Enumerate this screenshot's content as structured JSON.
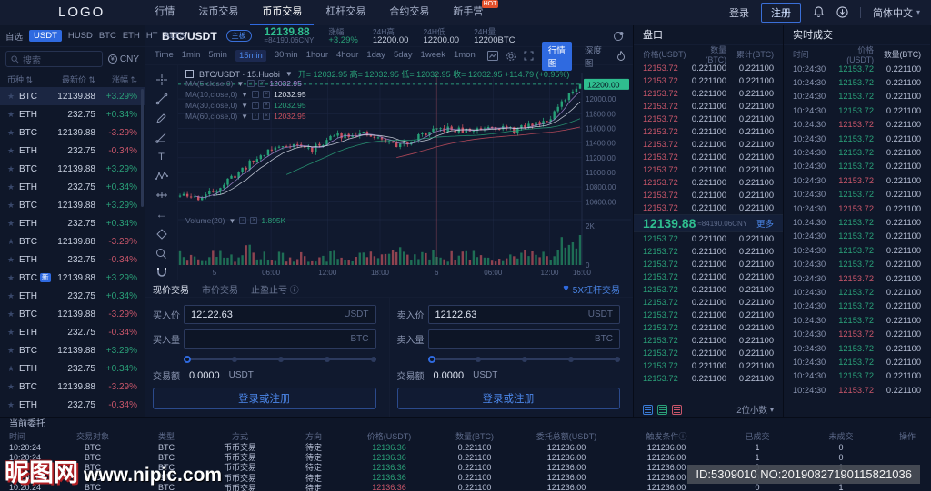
{
  "nav": {
    "logo": "LOGO",
    "items": [
      {
        "label": "行情"
      },
      {
        "label": "法币交易"
      },
      {
        "label": "币币交易",
        "active": true
      },
      {
        "label": "杠杆交易"
      },
      {
        "label": "合约交易"
      },
      {
        "label": "新手营",
        "hot": "HOT"
      }
    ],
    "login": "登录",
    "register": "注册",
    "lang": "简体中文"
  },
  "icons": {
    "star": "★",
    "caret": "▾",
    "tri": "▼",
    "heart": "♥",
    "sort": "⇅",
    "info": "ⓘ"
  },
  "colors": {
    "accent": "#2f6ae0",
    "green": "#2aa179",
    "red": "#c9566a",
    "tag_green": "#2fbe8f"
  },
  "sidebar": {
    "tabs": [
      "自选",
      "USDT",
      "HUSD",
      "BTC",
      "ETH",
      "HT",
      "ALTS"
    ],
    "active_tab": "USDT",
    "search_placeholder": "搜索",
    "currency": "CNY",
    "columns": [
      "币种",
      "最新价",
      "涨幅"
    ],
    "rows": [
      {
        "coin": "BTC",
        "price": "12139.88",
        "chg": "+3.29%",
        "d": "g",
        "sel": true
      },
      {
        "coin": "ETH",
        "price": "232.75",
        "chg": "+0.34%",
        "d": "g"
      },
      {
        "coin": "BTC",
        "price": "12139.88",
        "chg": "-3.29%",
        "d": "r"
      },
      {
        "coin": "ETH",
        "price": "232.75",
        "chg": "-0.34%",
        "d": "r"
      },
      {
        "coin": "BTC",
        "price": "12139.88",
        "chg": "+3.29%",
        "d": "g"
      },
      {
        "coin": "ETH",
        "price": "232.75",
        "chg": "+0.34%",
        "d": "g"
      },
      {
        "coin": "BTC",
        "price": "12139.88",
        "chg": "+3.29%",
        "d": "g"
      },
      {
        "coin": "ETH",
        "price": "232.75",
        "chg": "+0.34%",
        "d": "g"
      },
      {
        "coin": "BTC",
        "price": "12139.88",
        "chg": "-3.29%",
        "d": "r"
      },
      {
        "coin": "ETH",
        "price": "232.75",
        "chg": "-0.34%",
        "d": "r"
      },
      {
        "coin": "BTC",
        "badge": "新",
        "price": "12139.88",
        "chg": "+3.29%",
        "d": "g"
      },
      {
        "coin": "ETH",
        "price": "232.75",
        "chg": "+0.34%",
        "d": "g"
      },
      {
        "coin": "BTC",
        "price": "12139.88",
        "chg": "-3.29%",
        "d": "r"
      },
      {
        "coin": "ETH",
        "price": "232.75",
        "chg": "-0.34%",
        "d": "r"
      },
      {
        "coin": "BTC",
        "price": "12139.88",
        "chg": "+3.29%",
        "d": "g"
      },
      {
        "coin": "ETH",
        "price": "232.75",
        "chg": "+0.34%",
        "d": "g"
      },
      {
        "coin": "BTC",
        "price": "12139.88",
        "chg": "-3.29%",
        "d": "r"
      },
      {
        "coin": "ETH",
        "price": "232.75",
        "chg": "-0.34%",
        "d": "r"
      }
    ]
  },
  "chart": {
    "pair": "BTC/USDT",
    "board_badge": "主板",
    "price": "12139.88",
    "cny": "≈84190.06CNY",
    "stats": [
      {
        "label": "涨幅",
        "value": "+3.29%",
        "d": "g"
      },
      {
        "label": "24H高",
        "value": "12200.00"
      },
      {
        "label": "24H低",
        "value": "12200.00"
      },
      {
        "label": "24H量",
        "value": "12200BTC"
      }
    ],
    "intervals": [
      "Time",
      "1min",
      "5min",
      "15min",
      "30min",
      "1hour",
      "4hour",
      "1day",
      "5day",
      "1week",
      "1mon"
    ],
    "active_interval": "15min",
    "view_tabs": [
      {
        "label": "行情图",
        "active": true
      },
      {
        "label": "深度图"
      }
    ],
    "legend_pair": "BTC/USDT · 15.Huobi",
    "ohlc": "开= 12032.95 高= 12032.95 低= 12032.95 收= 12032.95 +114.79 (+0.95%)",
    "ma": [
      {
        "label": "MA(5,close,0)",
        "value": "12032.95",
        "color": "#a78bd4"
      },
      {
        "label": "MA(10,close,0)",
        "value": "12032.95",
        "color": "#d9dfeb"
      },
      {
        "label": "MA(30,close,0)",
        "value": "12032.95",
        "color": "#2aa179"
      },
      {
        "label": "MA(60,close,0)",
        "value": "12032.95",
        "color": "#c9505f"
      }
    ],
    "volume_label": "Volume(20)",
    "volume_value": "1.895K"
  },
  "chart_data": {
    "type": "candlestick+volume",
    "y_ticks": [
      "12200.00",
      "12000.00",
      "11800.00",
      "11600.00",
      "11400.00",
      "11200.00",
      "11000.00",
      "10800.00",
      "10600.00"
    ],
    "x_ticks": [
      {
        "f": 0.09,
        "t": "5"
      },
      {
        "f": 0.23,
        "t": "06:00"
      },
      {
        "f": 0.37,
        "t": "12:00"
      },
      {
        "f": 0.5,
        "t": "18:00"
      },
      {
        "f": 0.64,
        "t": "6"
      },
      {
        "f": 0.78,
        "t": "06:00"
      },
      {
        "f": 0.92,
        "t": "12:00"
      },
      {
        "f": 1.0,
        "t": "16:00"
      }
    ],
    "vol_ticks": [
      "2K",
      "0"
    ],
    "price_tag": "12200.00",
    "last_price": 12200,
    "session_line_frac": 0.64,
    "candles": 110,
    "seed": 11,
    "trend": [
      [
        0,
        10680
      ],
      [
        0.05,
        10650
      ],
      [
        0.1,
        10800
      ],
      [
        0.16,
        11060
      ],
      [
        0.22,
        11300
      ],
      [
        0.28,
        11390
      ],
      [
        0.33,
        11310
      ],
      [
        0.38,
        11490
      ],
      [
        0.44,
        11540
      ],
      [
        0.5,
        11450
      ],
      [
        0.55,
        11360
      ],
      [
        0.6,
        11510
      ],
      [
        0.66,
        11590
      ],
      [
        0.72,
        11560
      ],
      [
        0.78,
        11650
      ],
      [
        0.83,
        11570
      ],
      [
        0.88,
        11650
      ],
      [
        0.92,
        11730
      ],
      [
        0.96,
        11960
      ],
      [
        1,
        12230
      ]
    ]
  },
  "forms": {
    "tabs": [
      {
        "label": "现价交易",
        "active": true
      },
      {
        "label": "市价交易"
      },
      {
        "label": "止盈止亏 ⓘ"
      }
    ],
    "leverage": "5X杠杆交易",
    "buy": {
      "price_label": "买入价",
      "price": "12122.63",
      "price_unit": "USDT",
      "amount_label": "买入量",
      "amount": "",
      "amount_unit": "BTC",
      "total_label": "交易额",
      "total": "0.0000",
      "total_unit": "USDT",
      "button": "登录或注册"
    },
    "sell": {
      "price_label": "卖入价",
      "price": "12122.63",
      "price_unit": "USDT",
      "amount_label": "卖入量",
      "amount": "",
      "amount_unit": "BTC",
      "total_label": "交易额",
      "total": "0.0000",
      "total_unit": "USDT",
      "button": "登录或注册"
    }
  },
  "orderbook": {
    "title": "盘口",
    "columns": [
      "价格(USDT)",
      "数量(BTC)",
      "累计(BTC)"
    ],
    "asks": {
      "count": 12,
      "price": "12153.72",
      "qty": "0.221100",
      "total": "0.221100"
    },
    "mid": {
      "price": "12139.88",
      "cny": "≈84190.06CNY",
      "more": "更多"
    },
    "bids": {
      "count": 12,
      "price": "12153.72",
      "qty": "0.221100",
      "total": "0.221100"
    },
    "decimals": "2位小数"
  },
  "trades": {
    "title": "实时成交",
    "columns": [
      "时间",
      "价格(USDT)",
      "数量(BTC)"
    ],
    "count": 24,
    "time": "10:24:30",
    "price": "12153.72",
    "qty": "0.221100",
    "red_rows": [
      5,
      9,
      11,
      16,
      20,
      24
    ]
  },
  "orders": {
    "title": "当前委托",
    "columns": [
      "时间",
      "交易对象",
      "类型",
      "方式",
      "方向",
      "价格(USDT)",
      "数量(BTC)",
      "委托总额(USDT)",
      "触发条件ⓘ",
      "已成交",
      "未成交",
      "操作"
    ],
    "rows": [
      {
        "cells": [
          "10:20:24",
          "BTC",
          "BTC",
          "币币交易",
          "待定",
          "12136.36",
          "0.221100",
          "121236.00",
          "121236.00",
          "1",
          "0",
          ""
        ],
        "pc": "g"
      },
      {
        "cells": [
          "10:20:24",
          "BTC",
          "BTC",
          "币币交易",
          "待定",
          "12136.36",
          "0.221100",
          "121236.00",
          "121236.00",
          "1",
          "0",
          ""
        ],
        "pc": "g"
      },
      {
        "cells": [
          "10:20:24",
          "BTC",
          "BTC",
          "币币交易",
          "待定",
          "12136.36",
          "0.221100",
          "121236.00",
          "121236.00",
          "0",
          "1",
          ""
        ],
        "pc": "g"
      },
      {
        "cells": [
          "10:20:24",
          "BTC",
          "BTC",
          "币币交易",
          "待定",
          "12136.36",
          "0.221100",
          "121236.00",
          "121236.00",
          "0",
          "1",
          ""
        ],
        "pc": "g"
      },
      {
        "cells": [
          "10:20:24",
          "BTC",
          "BTC",
          "币币交易",
          "待定",
          "12136.36",
          "0.221100",
          "121236.00",
          "121236.00",
          "0",
          "1",
          ""
        ],
        "pc": "r"
      }
    ]
  },
  "watermark": {
    "logo": "昵图网",
    "url": "www.nipic.com"
  },
  "id_text": "ID:5309010 NO:20190827190115821036"
}
